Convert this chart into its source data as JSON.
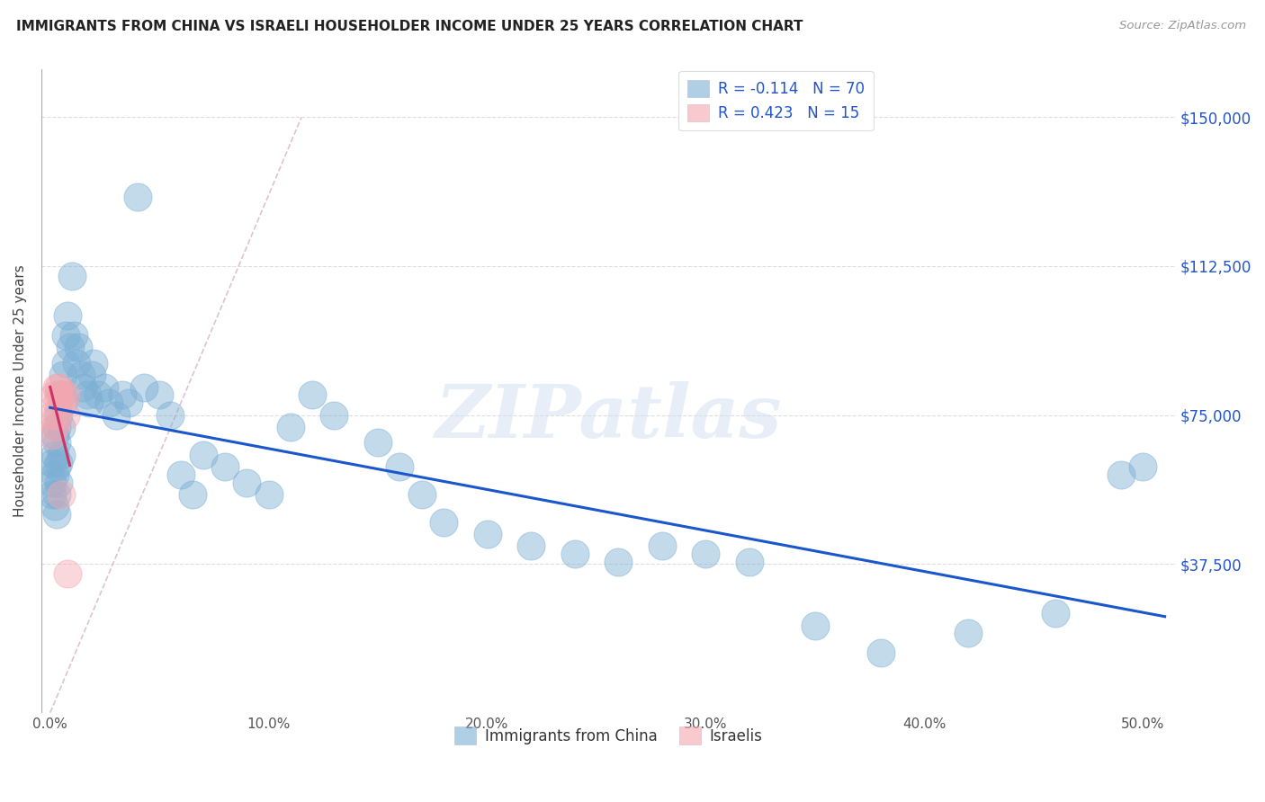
{
  "title": "IMMIGRANTS FROM CHINA VS ISRAELI HOUSEHOLDER INCOME UNDER 25 YEARS CORRELATION CHART",
  "source": "Source: ZipAtlas.com",
  "xlabel_ticks": [
    "0.0%",
    "10.0%",
    "20.0%",
    "30.0%",
    "40.0%",
    "50.0%"
  ],
  "xlabel_tick_vals": [
    0.0,
    0.1,
    0.2,
    0.3,
    0.4,
    0.5
  ],
  "ylabel": "Householder Income Under 25 years",
  "ytick_labels": [
    "$37,500",
    "$75,000",
    "$112,500",
    "$150,000"
  ],
  "ytick_vals": [
    37500,
    75000,
    112500,
    150000
  ],
  "ymin": 0,
  "ymax": 162000,
  "xmin": -0.004,
  "xmax": 0.515,
  "legend_bottom_label1": "Immigrants from China",
  "legend_bottom_label2": "Israelis",
  "blue_color": "#7BAFD4",
  "pink_color": "#F4A7B0",
  "line_blue": "#1A56CC",
  "line_pink": "#CC3366",
  "line_dashed_color": "#CCCCCC",
  "text_blue": "#2255CC",
  "watermark": "ZIPatlas",
  "bg_color": "#FFFFFF",
  "grid_color": "#DDDDDD",
  "china_x": [
    0.001,
    0.001,
    0.001,
    0.002,
    0.002,
    0.002,
    0.002,
    0.003,
    0.003,
    0.003,
    0.003,
    0.003,
    0.004,
    0.004,
    0.004,
    0.005,
    0.005,
    0.005,
    0.006,
    0.006,
    0.007,
    0.007,
    0.008,
    0.009,
    0.01,
    0.011,
    0.012,
    0.013,
    0.014,
    0.015,
    0.017,
    0.018,
    0.019,
    0.02,
    0.022,
    0.025,
    0.027,
    0.03,
    0.033,
    0.036,
    0.04,
    0.043,
    0.05,
    0.055,
    0.06,
    0.065,
    0.07,
    0.08,
    0.09,
    0.1,
    0.11,
    0.12,
    0.13,
    0.15,
    0.16,
    0.17,
    0.18,
    0.2,
    0.22,
    0.24,
    0.26,
    0.28,
    0.3,
    0.32,
    0.35,
    0.38,
    0.42,
    0.46,
    0.49,
    0.5
  ],
  "china_y": [
    58000,
    63000,
    55000,
    52000,
    65000,
    70000,
    60000,
    62000,
    68000,
    72000,
    55000,
    50000,
    75000,
    63000,
    58000,
    80000,
    65000,
    72000,
    85000,
    78000,
    95000,
    88000,
    100000,
    92000,
    110000,
    95000,
    88000,
    92000,
    85000,
    82000,
    80000,
    78000,
    85000,
    88000,
    80000,
    82000,
    78000,
    75000,
    80000,
    78000,
    130000,
    82000,
    80000,
    75000,
    60000,
    55000,
    65000,
    62000,
    58000,
    55000,
    72000,
    80000,
    75000,
    68000,
    62000,
    55000,
    48000,
    45000,
    42000,
    40000,
    38000,
    42000,
    40000,
    38000,
    22000,
    15000,
    20000,
    25000,
    60000,
    62000
  ],
  "israel_x": [
    0.001,
    0.001,
    0.002,
    0.002,
    0.003,
    0.003,
    0.003,
    0.004,
    0.004,
    0.005,
    0.005,
    0.006,
    0.007,
    0.007,
    0.008
  ],
  "israel_y": [
    70000,
    75000,
    72000,
    80000,
    82000,
    78000,
    75000,
    80000,
    82000,
    80000,
    55000,
    78000,
    75000,
    80000,
    35000
  ]
}
